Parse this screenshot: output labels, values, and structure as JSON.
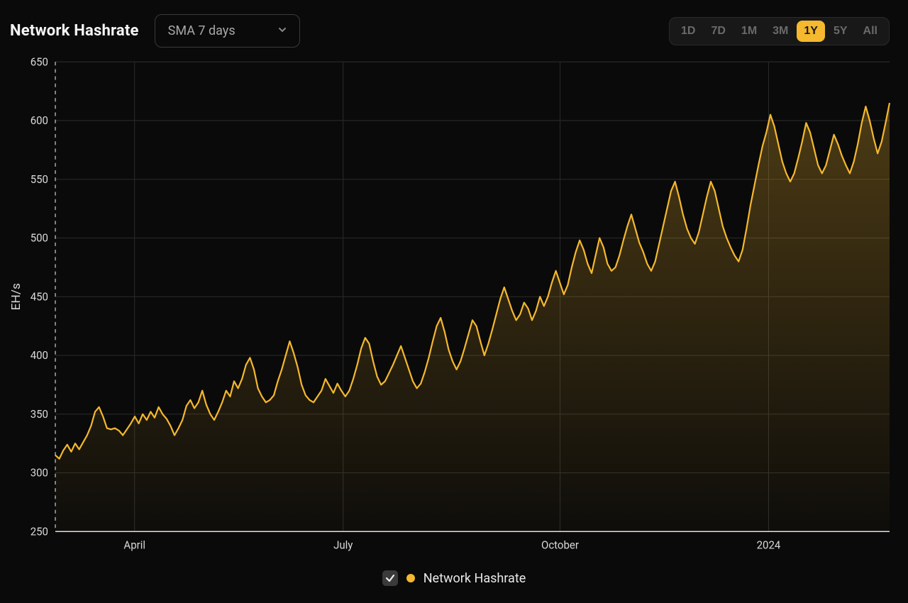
{
  "title": "Network Hashrate",
  "dropdown": {
    "selected": "SMA 7 days"
  },
  "ranges": {
    "options": [
      "1D",
      "7D",
      "1M",
      "3M",
      "1Y",
      "5Y",
      "All"
    ],
    "active": "1Y"
  },
  "chart": {
    "type": "area-line",
    "background_color": "#0a0a0a",
    "grid_color": "#2b2b2b",
    "axis_color": "#e0e0e0",
    "line_color": "#f5b82e",
    "area_gradient_top": "rgba(245,184,46,0.28)",
    "area_gradient_bottom": "rgba(245,184,46,0.02)",
    "line_width": 2.2,
    "y": {
      "title": "EH/s",
      "min": 250,
      "max": 650,
      "tick_step": 50,
      "ticks": [
        250,
        300,
        350,
        400,
        450,
        500,
        550,
        600,
        650
      ]
    },
    "x": {
      "ticks": [
        {
          "pos": 0.095,
          "label": "April"
        },
        {
          "pos": 0.345,
          "label": "July"
        },
        {
          "pos": 0.605,
          "label": "October"
        },
        {
          "pos": 0.855,
          "label": "2024"
        }
      ]
    },
    "series": {
      "name": "Network Hashrate",
      "values": [
        315,
        312,
        319,
        324,
        318,
        325,
        320,
        326,
        332,
        340,
        352,
        356,
        348,
        338,
        337,
        338,
        336,
        332,
        337,
        342,
        348,
        342,
        350,
        345,
        352,
        347,
        356,
        350,
        346,
        340,
        332,
        338,
        345,
        357,
        362,
        355,
        360,
        370,
        358,
        350,
        345,
        352,
        360,
        370,
        365,
        378,
        372,
        380,
        392,
        398,
        388,
        372,
        365,
        360,
        362,
        366,
        378,
        388,
        400,
        412,
        402,
        390,
        375,
        366,
        362,
        360,
        365,
        370,
        380,
        374,
        368,
        376,
        370,
        365,
        370,
        380,
        392,
        406,
        415,
        410,
        395,
        382,
        375,
        378,
        385,
        392,
        400,
        408,
        398,
        388,
        378,
        372,
        376,
        386,
        398,
        412,
        425,
        432,
        420,
        405,
        395,
        388,
        395,
        406,
        418,
        430,
        425,
        412,
        400,
        410,
        422,
        435,
        448,
        458,
        448,
        438,
        430,
        435,
        445,
        440,
        430,
        438,
        450,
        442,
        450,
        462,
        472,
        462,
        452,
        460,
        475,
        488,
        498,
        490,
        478,
        470,
        485,
        500,
        492,
        478,
        472,
        475,
        485,
        498,
        510,
        520,
        508,
        496,
        488,
        478,
        472,
        480,
        495,
        510,
        525,
        540,
        548,
        535,
        520,
        508,
        500,
        495,
        505,
        520,
        535,
        548,
        540,
        525,
        510,
        500,
        492,
        485,
        480,
        490,
        508,
        528,
        545,
        562,
        578,
        590,
        605,
        595,
        580,
        565,
        555,
        548,
        555,
        568,
        582,
        598,
        590,
        576,
        562,
        555,
        562,
        575,
        588,
        580,
        570,
        562,
        555,
        565,
        580,
        598,
        612,
        600,
        585,
        572,
        582,
        598,
        615
      ]
    }
  },
  "legend": {
    "checked": true,
    "label": "Network Hashrate",
    "color": "#f5b82e"
  },
  "colors": {
    "bg": "#0a0a0a",
    "text": "#e8e8e8",
    "muted": "#6a6a6a",
    "accent": "#f5b82e",
    "border": "#3a3a3a"
  }
}
